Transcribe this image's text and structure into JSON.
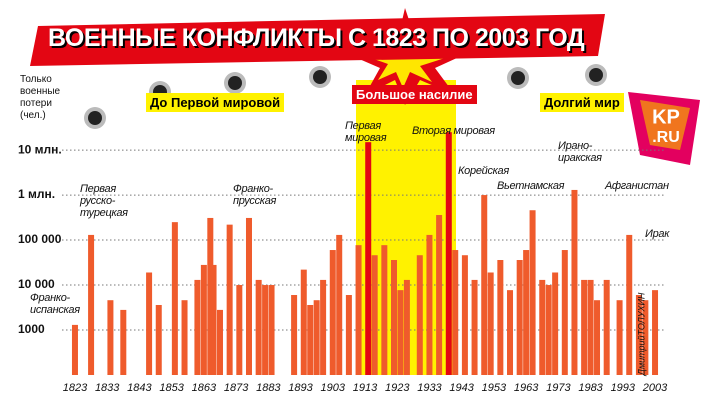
{
  "chart_data": {
    "type": "bar",
    "title": "ВОЕННЫЕ КОНФЛИКТЫ С 1823 ПО 2003 ГОД",
    "y_label": "Только\nвоенные\nпотери\n(чел.)",
    "log_scale": true,
    "grid": true,
    "xlim": [
      1820,
      2006
    ],
    "xticks": [
      1823,
      1833,
      1843,
      1853,
      1863,
      1873,
      1883,
      1893,
      1903,
      1913,
      1923,
      1933,
      1943,
      1953,
      1963,
      1973,
      1983,
      1993,
      2003
    ],
    "ylim": [
      100,
      40000000
    ],
    "yticks": [
      1000,
      {
        "value": 10000,
        "label": "10 000"
      },
      {
        "value": 100000,
        "label": "100 000"
      },
      {
        "value": 1000000,
        "label": "1 млн."
      },
      {
        "value": 10000000,
        "label": "10 млн."
      }
    ],
    "x": [
      1823,
      1828,
      1834,
      1838,
      1846,
      1849,
      1854,
      1857,
      1861,
      1863,
      1865,
      1866,
      1868,
      1871,
      1874,
      1877,
      1880,
      1882,
      1884,
      1891,
      1894,
      1896,
      1898,
      1900,
      1903,
      1905,
      1908,
      1911,
      1914,
      1916,
      1919,
      1922,
      1924,
      1926,
      1930,
      1933,
      1936,
      1939,
      1941,
      1944,
      1947,
      1950,
      1952,
      1955,
      1958,
      1961,
      1963,
      1965,
      1968,
      1970,
      1972,
      1975,
      1978,
      1981,
      1983,
      1985,
      1988,
      1992,
      1995,
      1998,
      2000,
      2003
    ],
    "values": [
      1300,
      130000,
      4600,
      2800,
      19000,
      3600,
      250000,
      4600,
      13000,
      28000,
      310000,
      28000,
      2800,
      220000,
      10000,
      310000,
      13000,
      10000,
      10000,
      6000,
      22000,
      3600,
      4600,
      13000,
      60000,
      130000,
      6000,
      77000,
      15000000,
      46000,
      77000,
      36000,
      7700,
      13000,
      46000,
      130000,
      360000,
      25000000,
      60000,
      46000,
      13000,
      1000000,
      19000,
      36000,
      7700,
      36000,
      60000,
      460000,
      13000,
      10000,
      19000,
      60000,
      1300000,
      13000,
      13000,
      4600,
      13000,
      4600,
      130000,
      6000,
      4600,
      7700
    ],
    "colors": [
      "#ef5b2c",
      "#ef5b2c",
      "#ef5b2c",
      "#ef5b2c",
      "#ef5b2c",
      "#ef5b2c",
      "#ef5b2c",
      "#ef5b2c",
      "#ef5b2c",
      "#ef5b2c",
      "#ef5b2c",
      "#ef5b2c",
      "#ef5b2c",
      "#ef5b2c",
      "#ef5b2c",
      "#ef5b2c",
      "#ef5b2c",
      "#ef5b2c",
      "#ef5b2c",
      "#ef5b2c",
      "#ef5b2c",
      "#ef5b2c",
      "#ef5b2c",
      "#ef5b2c",
      "#ef5b2c",
      "#ef5b2c",
      "#ef5b2c",
      "#ef5b2c",
      "#e30613",
      "#ef5b2c",
      "#ef5b2c",
      "#ef5b2c",
      "#ef5b2c",
      "#ef5b2c",
      "#ef5b2c",
      "#ef5b2c",
      "#ef5b2c",
      "#e30613",
      "#ef5b2c",
      "#ef5b2c",
      "#ef5b2c",
      "#ef5b2c",
      "#ef5b2c",
      "#ef5b2c",
      "#ef5b2c",
      "#ef5b2c",
      "#ef5b2c",
      "#ef5b2c",
      "#ef5b2c",
      "#ef5b2c",
      "#ef5b2c",
      "#ef5b2c",
      "#ef5b2c",
      "#ef5b2c",
      "#ef5b2c",
      "#ef5b2c",
      "#ef5b2c",
      "#ef5b2c",
      "#ef5b2c",
      "#ef5b2c",
      "#ef5b2c",
      "#ef5b2c"
    ],
    "annotations": [
      "Первая\nрусско-\nтурецкая",
      "Франко-\nпрусская",
      "Первая\nмировая",
      "Вторая мировая",
      "Корейская",
      "Вьетнамская",
      "Ирано-\nиракская",
      "Афганистан",
      "Ирак",
      "Франко-\nиспанская"
    ],
    "periods": [
      "До Первой мировой",
      "Большое насилие",
      "Долгий мир"
    ],
    "logo": [
      "KP",
      ".RU"
    ],
    "credit": "ДмитрийТОЛУХИН"
  }
}
